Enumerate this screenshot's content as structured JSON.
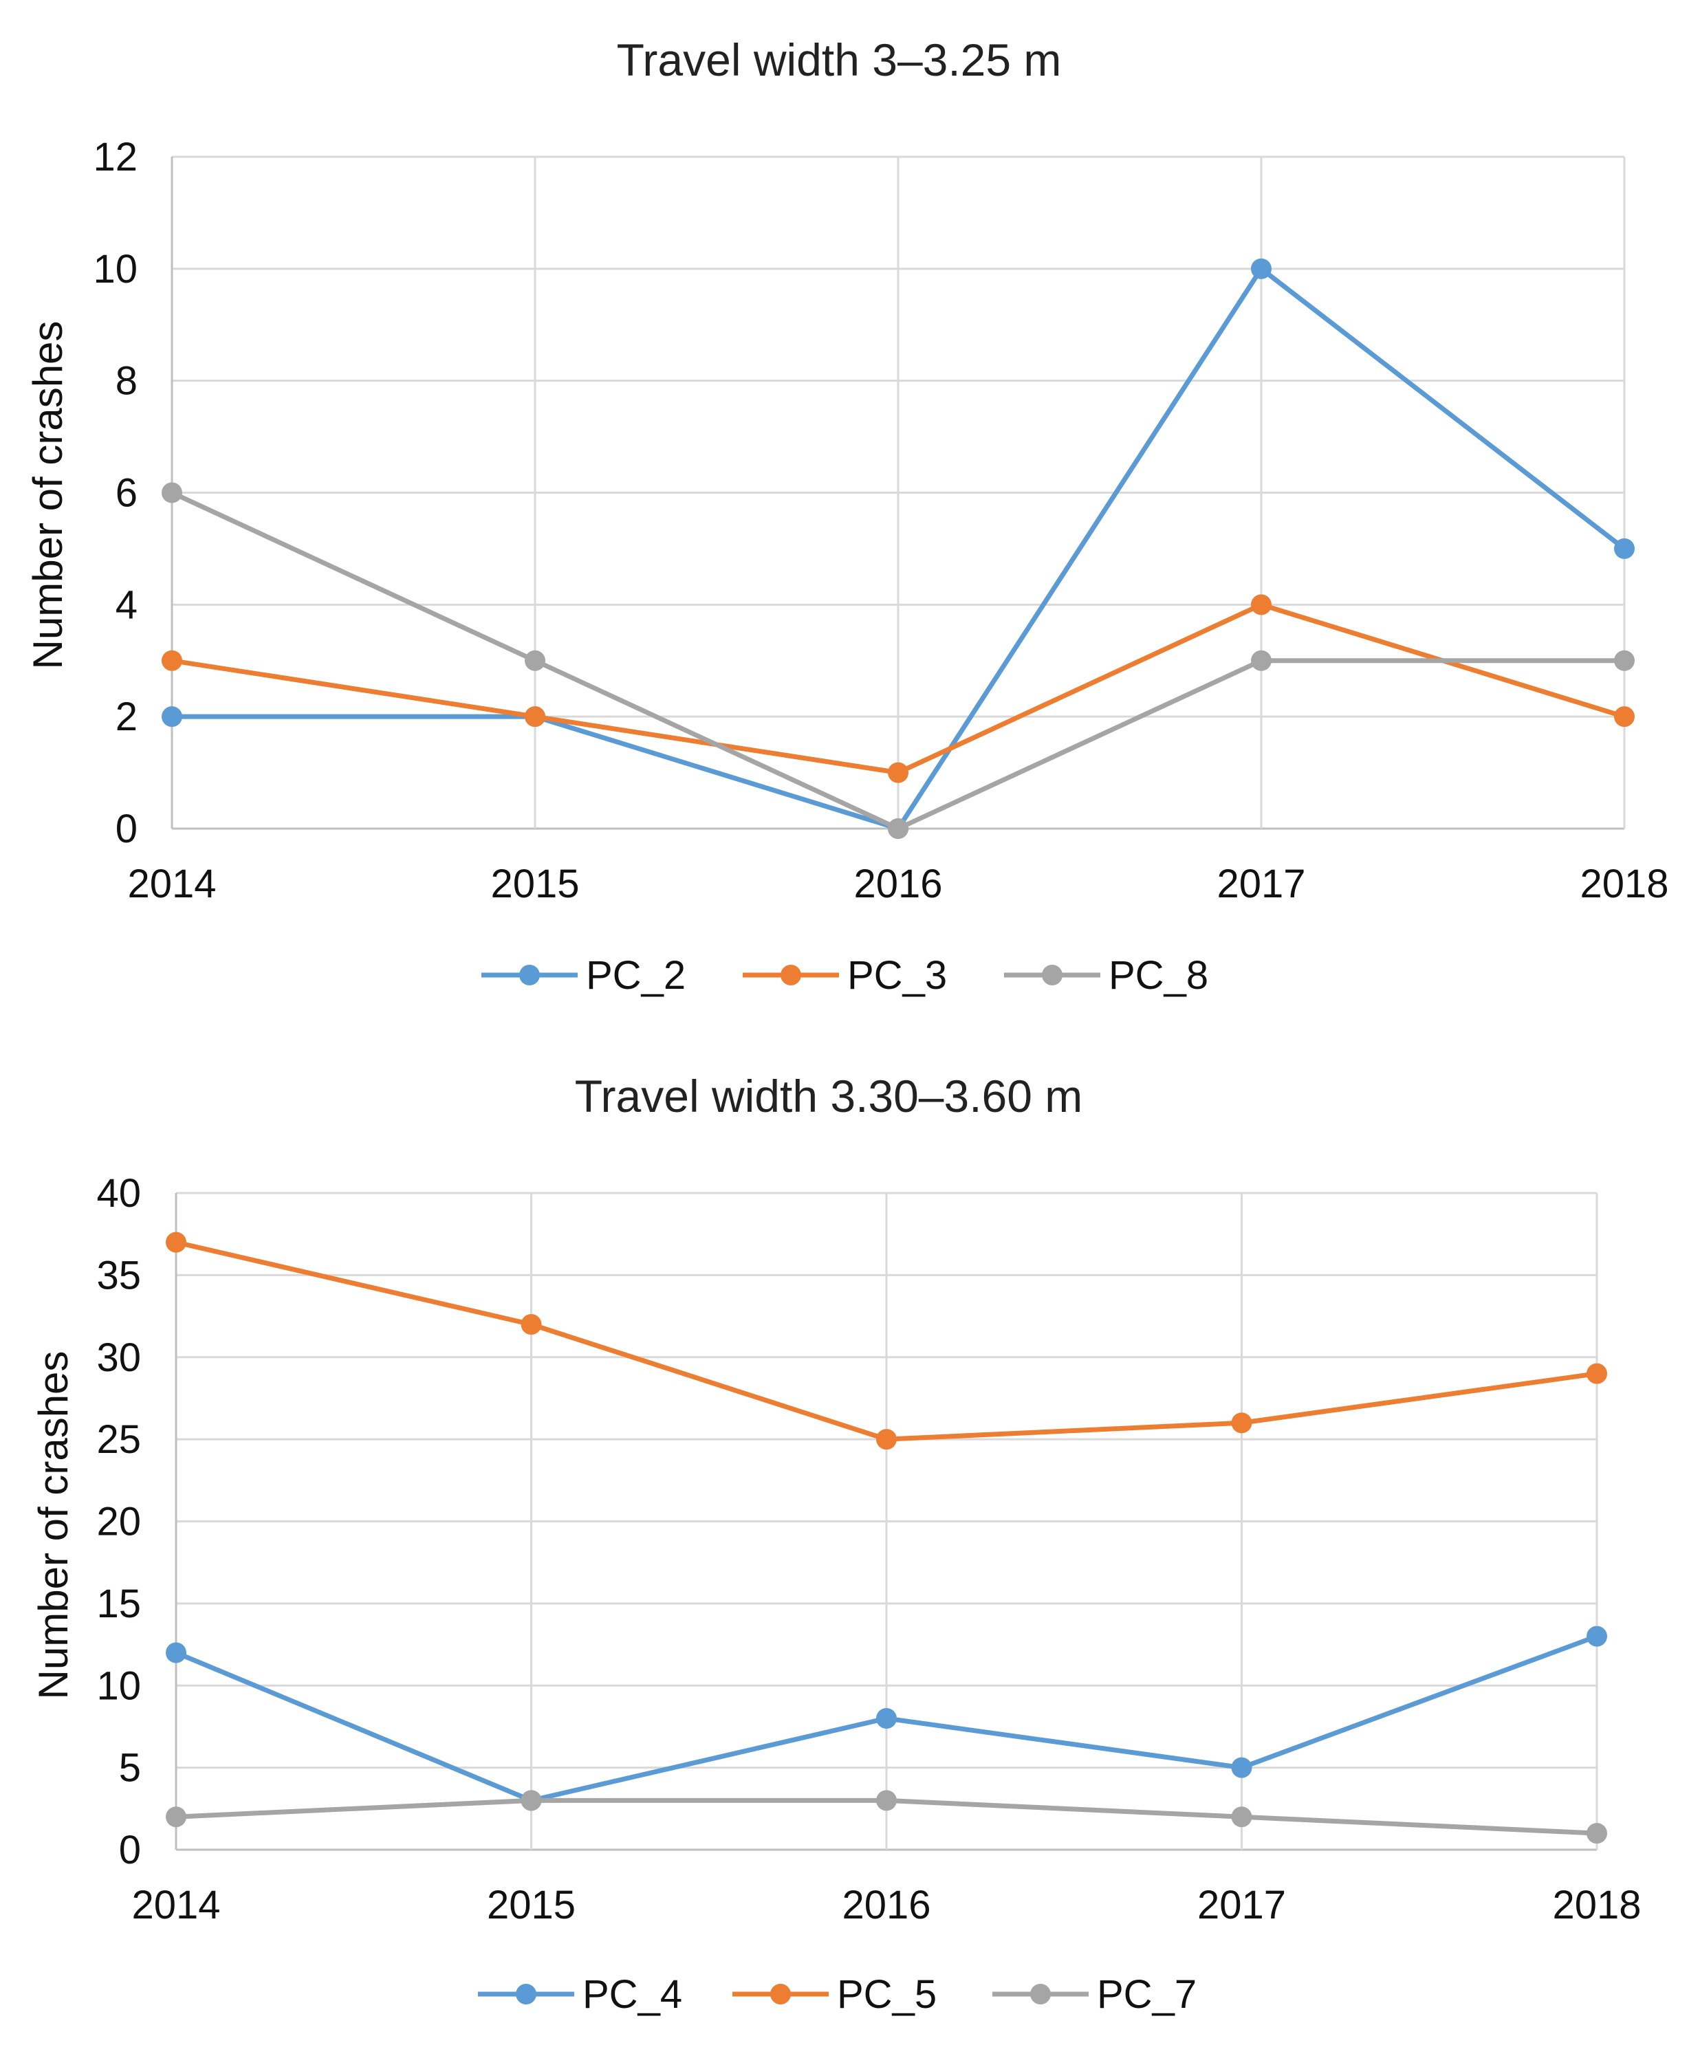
{
  "chart_data": [
    {
      "type": "line",
      "title": "Travel width 3–3.25 m",
      "xlabel": "",
      "ylabel": "Number  of crashes",
      "categories": [
        "2014",
        "2015",
        "2016",
        "2017",
        "2018"
      ],
      "ylim": [
        0,
        12
      ],
      "yticks": [
        "0",
        "2",
        "4",
        "6",
        "8",
        "10",
        "12"
      ],
      "grid": true,
      "legend_position": "bottom",
      "series": [
        {
          "name": "PC_2",
          "color": "#5b9bd5",
          "values": [
            2,
            2,
            0,
            10,
            5
          ]
        },
        {
          "name": "PC_3",
          "color": "#ed7d31",
          "values": [
            3,
            2,
            1,
            4,
            2
          ]
        },
        {
          "name": "PC_8",
          "color": "#a5a5a5",
          "values": [
            6,
            3,
            0,
            3,
            3
          ]
        }
      ]
    },
    {
      "type": "line",
      "title": "Travel width 3.30–3.60 m",
      "xlabel": "",
      "ylabel": "Number  of crashes",
      "categories": [
        "2014",
        "2015",
        "2016",
        "2017",
        "2018"
      ],
      "ylim": [
        0,
        40
      ],
      "yticks": [
        "0",
        "5",
        "10",
        "15",
        "20",
        "25",
        "30",
        "35",
        "40"
      ],
      "grid": true,
      "legend_position": "bottom",
      "series": [
        {
          "name": "PC_4",
          "color": "#5b9bd5",
          "values": [
            12,
            3,
            8,
            5,
            13
          ]
        },
        {
          "name": "PC_5",
          "color": "#ed7d31",
          "values": [
            37,
            32,
            25,
            26,
            29
          ]
        },
        {
          "name": "PC_7",
          "color": "#a5a5a5",
          "values": [
            2,
            3,
            3,
            2,
            1
          ]
        }
      ]
    }
  ]
}
